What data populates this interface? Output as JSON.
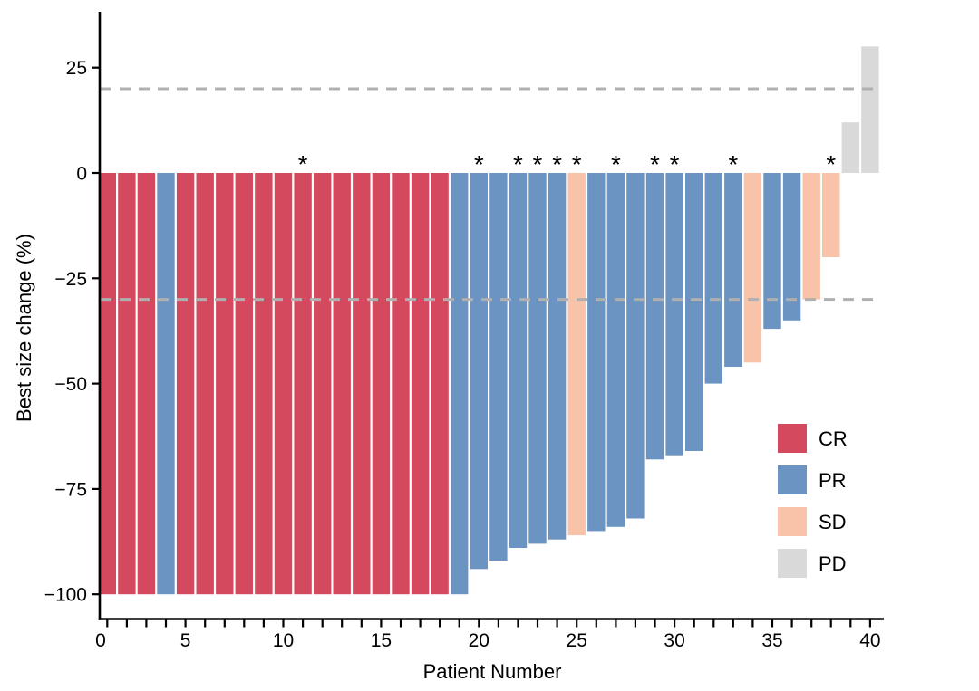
{
  "chart_data": {
    "type": "bar",
    "subtype": "waterfall",
    "title": "",
    "xlabel": "Patient Number",
    "ylabel": "Best size change (%)",
    "xlim": [
      0,
      40.8
    ],
    "ylim": [
      -106,
      38
    ],
    "x_major_tick_labels": [
      0,
      5,
      10,
      15,
      20,
      25,
      30,
      35,
      40
    ],
    "x_minor_ticks_every": 1,
    "y_ticks": [
      25,
      0,
      -25,
      -50,
      -75,
      -100
    ],
    "reference_lines": [
      20,
      -30
    ],
    "reference_line_style": {
      "color": "#b0b0b0",
      "dash": [
        12,
        9
      ],
      "width": 3
    },
    "grid": "off",
    "legend_position": "right-lower",
    "groups": {
      "CR": "#d5495f",
      "PR": "#6b94c3",
      "SD": "#f8c3a9",
      "PD": "#d9d9d9"
    },
    "legend": {
      "entries": [
        {
          "label": "CR",
          "color": "#d5495f"
        },
        {
          "label": "PR",
          "color": "#6b94c3"
        },
        {
          "label": "SD",
          "color": "#f8c3a9"
        },
        {
          "label": "PD",
          "color": "#d9d9d9"
        }
      ]
    },
    "annotation_marker": "*",
    "patients": [
      {
        "n": 1,
        "value": -100,
        "response": "CR",
        "asterisk": false
      },
      {
        "n": 2,
        "value": -100,
        "response": "CR",
        "asterisk": false
      },
      {
        "n": 3,
        "value": -100,
        "response": "CR",
        "asterisk": false
      },
      {
        "n": 4,
        "value": -100,
        "response": "PR",
        "asterisk": false
      },
      {
        "n": 5,
        "value": -100,
        "response": "CR",
        "asterisk": false
      },
      {
        "n": 6,
        "value": -100,
        "response": "CR",
        "asterisk": false
      },
      {
        "n": 7,
        "value": -100,
        "response": "CR",
        "asterisk": false
      },
      {
        "n": 8,
        "value": -100,
        "response": "CR",
        "asterisk": false
      },
      {
        "n": 9,
        "value": -100,
        "response": "CR",
        "asterisk": false
      },
      {
        "n": 10,
        "value": -100,
        "response": "CR",
        "asterisk": false
      },
      {
        "n": 11,
        "value": -100,
        "response": "CR",
        "asterisk": true
      },
      {
        "n": 12,
        "value": -100,
        "response": "CR",
        "asterisk": false
      },
      {
        "n": 13,
        "value": -100,
        "response": "CR",
        "asterisk": false
      },
      {
        "n": 14,
        "value": -100,
        "response": "CR",
        "asterisk": false
      },
      {
        "n": 15,
        "value": -100,
        "response": "CR",
        "asterisk": false
      },
      {
        "n": 16,
        "value": -100,
        "response": "CR",
        "asterisk": false
      },
      {
        "n": 17,
        "value": -100,
        "response": "CR",
        "asterisk": false
      },
      {
        "n": 18,
        "value": -100,
        "response": "CR",
        "asterisk": false
      },
      {
        "n": 19,
        "value": -100,
        "response": "PR",
        "asterisk": false
      },
      {
        "n": 20,
        "value": -94,
        "response": "PR",
        "asterisk": true
      },
      {
        "n": 21,
        "value": -92,
        "response": "PR",
        "asterisk": false
      },
      {
        "n": 22,
        "value": -89,
        "response": "PR",
        "asterisk": true
      },
      {
        "n": 23,
        "value": -88,
        "response": "PR",
        "asterisk": true
      },
      {
        "n": 24,
        "value": -87,
        "response": "PR",
        "asterisk": true
      },
      {
        "n": 25,
        "value": -86,
        "response": "SD",
        "asterisk": true
      },
      {
        "n": 26,
        "value": -85,
        "response": "PR",
        "asterisk": false
      },
      {
        "n": 27,
        "value": -84,
        "response": "PR",
        "asterisk": true
      },
      {
        "n": 28,
        "value": -82,
        "response": "PR",
        "asterisk": false
      },
      {
        "n": 29,
        "value": -68,
        "response": "PR",
        "asterisk": true
      },
      {
        "n": 30,
        "value": -67,
        "response": "PR",
        "asterisk": true
      },
      {
        "n": 31,
        "value": -66,
        "response": "PR",
        "asterisk": false
      },
      {
        "n": 32,
        "value": -50,
        "response": "PR",
        "asterisk": false
      },
      {
        "n": 33,
        "value": -46,
        "response": "PR",
        "asterisk": true
      },
      {
        "n": 34,
        "value": -45,
        "response": "SD",
        "asterisk": false
      },
      {
        "n": 35,
        "value": -37,
        "response": "PR",
        "asterisk": false
      },
      {
        "n": 36,
        "value": -35,
        "response": "PR",
        "asterisk": false
      },
      {
        "n": 37,
        "value": -30,
        "response": "SD",
        "asterisk": false
      },
      {
        "n": 38,
        "value": -20,
        "response": "SD",
        "asterisk": true
      },
      {
        "n": 39,
        "value": 12,
        "response": "PD",
        "asterisk": false
      },
      {
        "n": 40,
        "value": 30,
        "response": "PD",
        "asterisk": false
      }
    ]
  }
}
